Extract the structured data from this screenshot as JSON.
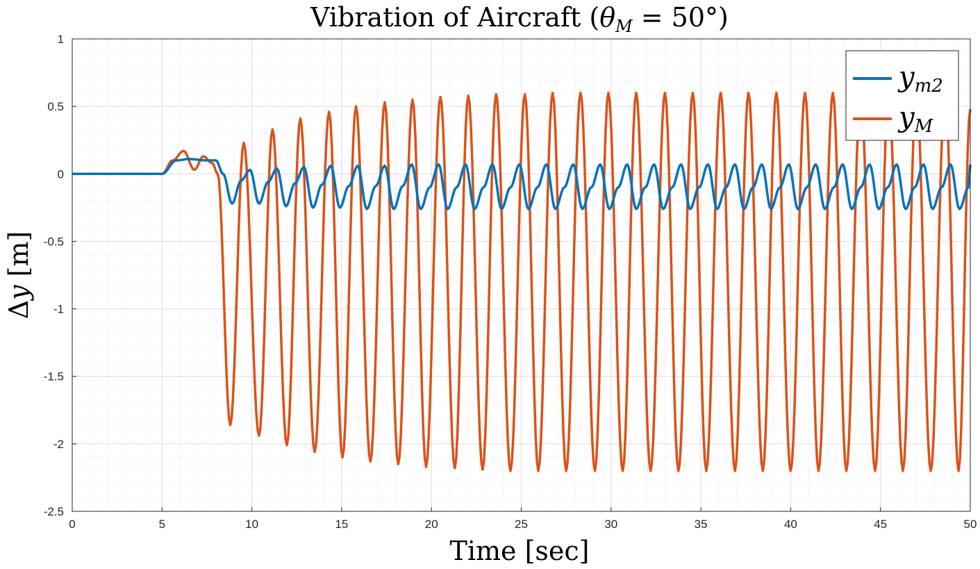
{
  "chart_data": {
    "type": "line",
    "title": "Vibration of Aircraft (θ_M = 50°)",
    "xlabel": "Time [sec]",
    "ylabel": "Δy [m]",
    "xlim": [
      0,
      50
    ],
    "ylim": [
      -2.5,
      1
    ],
    "xticks": [
      "0",
      "5",
      "10",
      "15",
      "20",
      "25",
      "30",
      "35",
      "40",
      "45",
      "50"
    ],
    "yticks": [
      "1",
      "0.5",
      "0",
      "-0.5",
      "-1",
      "-1.5",
      "-2",
      "-2.5"
    ],
    "grid": true,
    "minor_grid": true,
    "legend_position": "top-right",
    "series": [
      {
        "name": "y_m2",
        "color": "#0072BD",
        "description": "small oscillation",
        "onset": 5.0,
        "x": [
          0,
          5.0,
          5.8,
          6.5,
          7.5,
          8.0,
          8.4,
          8.9,
          9.4,
          9.9,
          10.4,
          10.9,
          11.4,
          11.9,
          12.4,
          12.9,
          13.4,
          13.9,
          14.4,
          14.9,
          15.4,
          15.9,
          16.4,
          16.9,
          17.4,
          17.9,
          18.4,
          18.9,
          19.4,
          19.9,
          20.4,
          20.9,
          21.4,
          21.9,
          22.4,
          22.9,
          23.4,
          23.9,
          24.4,
          24.9,
          25.4,
          25.9,
          26.4,
          26.9,
          27.4,
          27.9,
          28.4,
          28.9,
          29.4,
          29.9,
          30.4,
          30.9,
          31.4,
          31.9,
          32.4,
          32.9,
          33.4,
          33.9,
          34.4,
          34.9,
          35.4,
          35.9,
          36.4,
          36.9,
          37.4,
          37.9,
          38.4,
          38.9,
          39.4,
          39.9,
          40.4,
          40.9,
          41.4,
          41.9,
          42.4,
          42.9,
          43.4,
          43.9,
          44.4,
          44.9,
          45.4,
          45.9,
          46.4,
          46.9,
          47.4,
          47.9,
          48.4,
          48.9,
          49.4,
          49.9,
          50
        ],
        "y": [
          0,
          0,
          0.1,
          0.11,
          0.1,
          0.1,
          0.0,
          -0.22,
          -0.05,
          0.03,
          -0.22,
          -0.06,
          0.04,
          -0.24,
          -0.07,
          0.05,
          -0.25,
          -0.08,
          0.06,
          -0.25,
          -0.09,
          0.06,
          -0.26,
          -0.09,
          0.06,
          -0.26,
          -0.09,
          0.07,
          -0.26,
          -0.1,
          0.07,
          -0.26,
          -0.1,
          0.07,
          -0.26,
          -0.1,
          0.07,
          -0.26,
          -0.1,
          0.07,
          -0.26,
          -0.1,
          0.07,
          -0.26,
          -0.1,
          0.07,
          -0.26,
          -0.1,
          0.07,
          -0.26,
          -0.1,
          0.07,
          -0.26,
          -0.1,
          0.07,
          -0.26,
          -0.1,
          0.07,
          -0.26,
          -0.1,
          0.07,
          -0.26,
          -0.1,
          0.07,
          -0.26,
          -0.1,
          0.07,
          -0.26,
          -0.1,
          0.07,
          -0.26,
          -0.1,
          0.07,
          -0.26,
          -0.1,
          0.07,
          -0.26,
          -0.1,
          0.07,
          -0.26,
          -0.1,
          0.07,
          -0.26,
          -0.1,
          0.07,
          -0.26,
          -0.1,
          0.07,
          -0.26,
          -0.1,
          0.07
        ]
      },
      {
        "name": "y_M",
        "color": "#D95319",
        "x": [
          0,
          5.0,
          5.6,
          6.2,
          6.8,
          7.3,
          7.8,
          8.1,
          8.8,
          9.55,
          10.4,
          11.15,
          11.95,
          12.7,
          13.5,
          14.3,
          15.05,
          15.8,
          16.6,
          17.4,
          18.15,
          18.95,
          19.7,
          20.5,
          21.3,
          22.05,
          22.85,
          23.6,
          24.4,
          25.2,
          25.95,
          26.75,
          27.5,
          28.3,
          29.1,
          29.85,
          30.65,
          31.4,
          32.2,
          33.0,
          33.75,
          34.55,
          35.3,
          36.1,
          36.9,
          37.65,
          38.45,
          39.2,
          40.0,
          40.8,
          41.55,
          42.35,
          43.1,
          43.9,
          44.7,
          45.45,
          46.25,
          47.0,
          47.8,
          48.6,
          49.35,
          50
        ],
        "y": [
          0,
          0,
          0.1,
          0.17,
          0.03,
          0.13,
          0.08,
          0.0,
          -1.86,
          0.23,
          -1.94,
          0.33,
          -2.01,
          0.41,
          -2.06,
          0.46,
          -2.1,
          0.5,
          -2.13,
          0.53,
          -2.15,
          0.55,
          -2.17,
          0.57,
          -2.18,
          0.58,
          -2.19,
          0.59,
          -2.2,
          0.59,
          -2.2,
          0.6,
          -2.2,
          0.6,
          -2.2,
          0.6,
          -2.2,
          0.6,
          -2.2,
          0.6,
          -2.2,
          0.6,
          -2.2,
          0.6,
          -2.2,
          0.6,
          -2.2,
          0.6,
          -2.2,
          0.6,
          -2.2,
          0.6,
          -2.2,
          0.6,
          -2.2,
          0.6,
          -2.2,
          0.6,
          -2.2,
          0.6,
          -2.2,
          0.48
        ]
      }
    ]
  },
  "legend": {
    "items": [
      {
        "label": "y",
        "sub": "m2",
        "color": "#0072BD"
      },
      {
        "label": "y",
        "sub": "M",
        "color": "#D95319"
      }
    ]
  }
}
